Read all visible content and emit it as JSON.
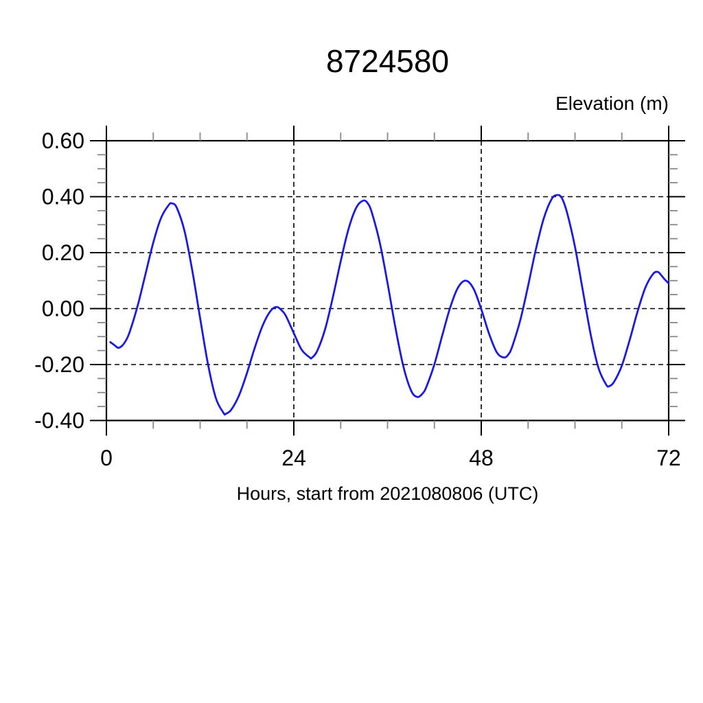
{
  "chart_data": {
    "type": "line",
    "title": "8724580",
    "xlabel": "Hours, start from 2021080806 (UTC)",
    "ylabel": "Elevation (m)",
    "xlim": [
      0,
      72
    ],
    "ylim": [
      -0.4,
      0.6
    ],
    "x_ticks": [
      {
        "value": 0,
        "label": "0"
      },
      {
        "value": 24,
        "label": "24"
      },
      {
        "value": 48,
        "label": "48"
      },
      {
        "value": 72,
        "label": "72"
      }
    ],
    "x_minor_step": 6,
    "y_ticks": [
      {
        "value": 0.6,
        "label": "0.60"
      },
      {
        "value": 0.4,
        "label": "0.40"
      },
      {
        "value": 0.2,
        "label": "0.20"
      },
      {
        "value": 0.0,
        "label": "0.00"
      },
      {
        "value": -0.2,
        "label": "-0.20"
      },
      {
        "value": -0.4,
        "label": "-0.40"
      }
    ],
    "y_minor_step": 0.05,
    "grid": {
      "major": true,
      "style": "dashed"
    },
    "legend": {
      "visible": false
    },
    "line_color": "#1a1ae0",
    "series": [
      {
        "points": [
          [
            0.5,
            -0.12
          ],
          [
            1,
            -0.13
          ],
          [
            1.5,
            -0.14
          ],
          [
            2,
            -0.133
          ],
          [
            2.5,
            -0.114
          ],
          [
            3,
            -0.082
          ],
          [
            4,
            0.01
          ],
          [
            5,
            0.123
          ],
          [
            6,
            0.236
          ],
          [
            7,
            0.324
          ],
          [
            8,
            0.371
          ],
          [
            8.4,
            0.376
          ],
          [
            9,
            0.361
          ],
          [
            10,
            0.277
          ],
          [
            11,
            0.136
          ],
          [
            12,
            -0.034
          ],
          [
            13,
            -0.198
          ],
          [
            14,
            -0.319
          ],
          [
            15,
            -0.373
          ],
          [
            15.3,
            -0.376
          ],
          [
            16,
            -0.361
          ],
          [
            17,
            -0.309
          ],
          [
            18,
            -0.23
          ],
          [
            19,
            -0.14
          ],
          [
            20,
            -0.061
          ],
          [
            21,
            -0.009
          ],
          [
            21.8,
            0.006
          ],
          [
            22.5,
            -0.008
          ],
          [
            23,
            -0.027
          ],
          [
            24,
            -0.088
          ],
          [
            25,
            -0.147
          ],
          [
            26,
            -0.174
          ],
          [
            26.3,
            -0.176
          ],
          [
            27,
            -0.151
          ],
          [
            28,
            -0.074
          ],
          [
            29,
            0.041
          ],
          [
            30,
            0.169
          ],
          [
            31,
            0.284
          ],
          [
            32,
            0.361
          ],
          [
            32.9,
            0.386
          ],
          [
            33.5,
            0.375
          ],
          [
            34,
            0.342
          ],
          [
            35,
            0.237
          ],
          [
            36,
            0.091
          ],
          [
            37,
            -0.067
          ],
          [
            38,
            -0.204
          ],
          [
            39,
            -0.292
          ],
          [
            39.8,
            -0.316
          ],
          [
            40.5,
            -0.303
          ],
          [
            41,
            -0.278
          ],
          [
            42,
            -0.199
          ],
          [
            43,
            -0.097
          ],
          [
            44,
            0.002
          ],
          [
            45,
            0.074
          ],
          [
            46,
            0.1
          ],
          [
            47,
            0.072
          ],
          [
            48,
            -0.002
          ],
          [
            49,
            -0.09
          ],
          [
            50,
            -0.157
          ],
          [
            50.9,
            -0.175
          ],
          [
            51.5,
            -0.163
          ],
          [
            52,
            -0.133
          ],
          [
            53,
            -0.041
          ],
          [
            54,
            0.082
          ],
          [
            55,
            0.212
          ],
          [
            56,
            0.322
          ],
          [
            57,
            0.391
          ],
          [
            57.7,
            0.406
          ],
          [
            58.3,
            0.396
          ],
          [
            59,
            0.342
          ],
          [
            60,
            0.221
          ],
          [
            61,
            0.065
          ],
          [
            62,
            -0.091
          ],
          [
            63,
            -0.211
          ],
          [
            64,
            -0.272
          ],
          [
            64.4,
            -0.277
          ],
          [
            65,
            -0.262
          ],
          [
            66,
            -0.204
          ],
          [
            67,
            -0.113
          ],
          [
            68,
            -0.012
          ],
          [
            69,
            0.074
          ],
          [
            70,
            0.124
          ],
          [
            70.6,
            0.131
          ],
          [
            71,
            0.121
          ],
          [
            71.5,
            0.104
          ],
          [
            72,
            0.09
          ]
        ]
      }
    ]
  }
}
